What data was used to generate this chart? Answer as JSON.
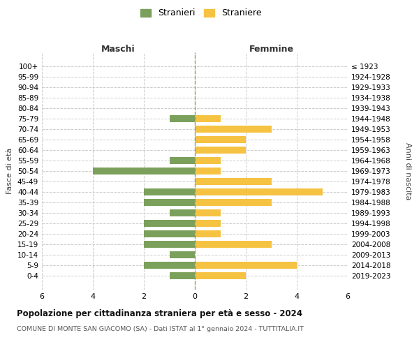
{
  "age_groups": [
    "100+",
    "95-99",
    "90-94",
    "85-89",
    "80-84",
    "75-79",
    "70-74",
    "65-69",
    "60-64",
    "55-59",
    "50-54",
    "45-49",
    "40-44",
    "35-39",
    "30-34",
    "25-29",
    "20-24",
    "15-19",
    "10-14",
    "5-9",
    "0-4"
  ],
  "birth_years": [
    "≤ 1923",
    "1924-1928",
    "1929-1933",
    "1934-1938",
    "1939-1943",
    "1944-1948",
    "1949-1953",
    "1954-1958",
    "1959-1963",
    "1964-1968",
    "1969-1973",
    "1974-1978",
    "1979-1983",
    "1984-1988",
    "1989-1993",
    "1994-1998",
    "1999-2003",
    "2004-2008",
    "2009-2013",
    "2014-2018",
    "2019-2023"
  ],
  "maschi": [
    0,
    0,
    0,
    0,
    0,
    1,
    0,
    0,
    0,
    1,
    4,
    0,
    2,
    2,
    1,
    2,
    2,
    2,
    1,
    2,
    1
  ],
  "femmine": [
    0,
    0,
    0,
    0,
    0,
    1,
    3,
    2,
    2,
    1,
    1,
    3,
    5,
    3,
    1,
    1,
    1,
    3,
    0,
    4,
    2
  ],
  "color_maschi": "#7ba05b",
  "color_femmine": "#f5c242",
  "title": "Popolazione per cittadinanza straniera per età e sesso - 2024",
  "subtitle": "COMUNE DI MONTE SAN GIACOMO (SA) - Dati ISTAT al 1° gennaio 2024 - TUTTITALIA.IT",
  "xlabel_left": "Maschi",
  "xlabel_right": "Femmine",
  "ylabel_left": "Fasce di età",
  "ylabel_right": "Anni di nascita",
  "legend_maschi": "Stranieri",
  "legend_femmine": "Straniere",
  "xlim": 6,
  "background_color": "#ffffff",
  "grid_color": "#cccccc"
}
